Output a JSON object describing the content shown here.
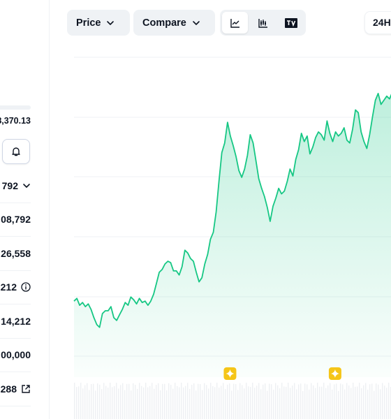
{
  "stats": {
    "top_value": "8,370.13",
    "rows": [
      {
        "text": "792",
        "icon": "chevron-down-icon"
      },
      {
        "text": "08,792",
        "icon": null
      },
      {
        "text": "26,558",
        "icon": null
      },
      {
        "text": "212",
        "icon": "info-icon"
      },
      {
        "text": "14,212",
        "icon": null
      },
      {
        "text": "00,000",
        "icon": null
      },
      {
        "text": "288",
        "icon": "external-link-icon"
      }
    ]
  },
  "toolbar": {
    "price_label": "Price",
    "compare_label": "Compare",
    "chart_modes": [
      "line-chart-icon",
      "candlestick-icon",
      "tradingview-icon"
    ],
    "active_mode": "line-chart-icon",
    "range_label": "24H"
  },
  "chart_data": {
    "type": "area",
    "series": [
      {
        "color": "#16c784",
        "values": [
          0.41,
          0.43,
          0.38,
          0.4,
          0.37,
          0.39,
          0.35,
          0.29,
          0.24,
          0.22,
          0.32,
          0.34,
          0.34,
          0.37,
          0.29,
          0.27,
          0.31,
          0.35,
          0.4,
          0.38,
          0.44,
          0.42,
          0.39,
          0.43,
          0.4,
          0.41,
          0.38,
          0.41,
          0.46,
          0.54,
          0.62,
          0.64,
          0.68,
          0.7,
          0.69,
          0.63,
          0.63,
          0.6,
          0.66,
          0.78,
          0.76,
          0.72,
          0.7,
          0.62,
          0.55,
          0.58,
          0.68,
          0.75,
          0.86,
          0.91,
          1.06,
          1.28,
          1.49,
          1.56,
          1.71,
          1.61,
          1.54,
          1.46,
          1.36,
          1.31,
          1.37,
          1.47,
          1.62,
          1.56,
          1.43,
          1.3,
          1.23,
          1.17,
          1.09,
          0.99,
          1.1,
          1.16,
          1.23,
          1.19,
          1.21,
          1.28,
          1.37,
          1.32,
          1.44,
          1.51,
          1.63,
          1.57,
          1.61,
          1.48,
          1.53,
          1.6,
          1.64,
          1.62,
          1.58,
          1.72,
          1.63,
          1.57,
          1.64,
          1.61,
          1.63,
          1.67,
          1.58,
          1.56,
          1.66,
          1.8,
          1.78,
          1.64,
          1.57,
          1.52,
          1.62,
          1.75,
          1.87,
          1.92,
          1.84,
          1.87,
          1.9,
          1.88,
          1.93
        ],
        "event_markers": [
          0.49,
          0.82
        ]
      }
    ],
    "xlabel": "",
    "ylabel": ""
  }
}
